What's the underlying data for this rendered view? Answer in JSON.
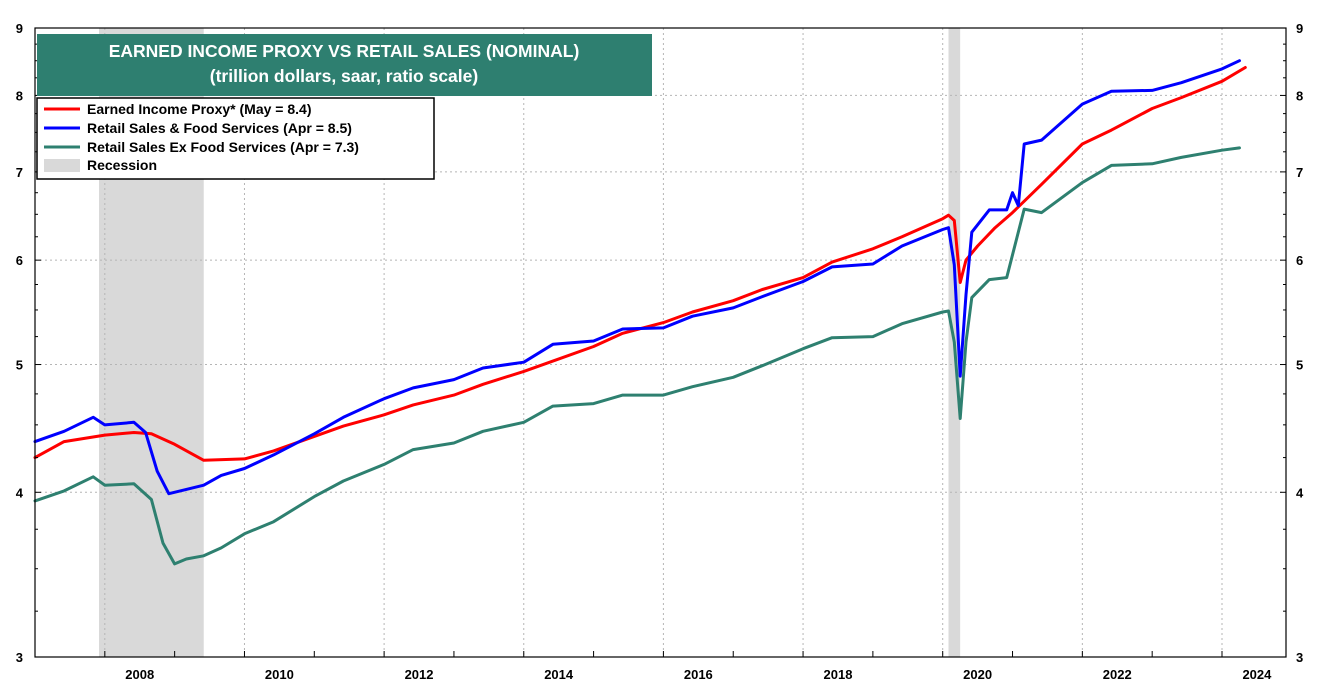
{
  "chart_data": {
    "type": "line",
    "title": "EARNED INCOME PROXY VS RETAIL SALES (NOMINAL)",
    "subtitle": "(trillion dollars, saar, ratio scale)",
    "ylabel": "",
    "xlabel": "",
    "y_scale": "log",
    "ylim": [
      3,
      9
    ],
    "xlim": [
      "2007-01",
      "2024-12"
    ],
    "yticks": [
      3,
      4,
      5,
      6,
      7,
      8,
      9
    ],
    "xticks": [
      "2008",
      "2010",
      "2012",
      "2014",
      "2016",
      "2018",
      "2020",
      "2022",
      "2024"
    ],
    "grid": true,
    "legend_position": "top-left",
    "right_axis_mirrors_left": true,
    "recessions": [
      {
        "start": "2007-12",
        "end": "2009-06"
      },
      {
        "start": "2020-02",
        "end": "2020-04"
      }
    ],
    "legend": [
      {
        "label": "Earned Income Proxy* (May = 8.4)",
        "color": "#ff0000"
      },
      {
        "label": "Retail Sales & Food Services (Apr = 8.5)",
        "color": "#0000ff"
      },
      {
        "label": "Retail Sales Ex Food Services (Apr = 7.3)",
        "color": "#2e8070"
      },
      {
        "label": "Recession",
        "color": "#d9d9d9"
      }
    ],
    "series": [
      {
        "name": "Earned Income Proxy* (May = 8.4)",
        "color": "#ff0000",
        "points": [
          [
            "2007-01",
            4.25
          ],
          [
            "2007-06",
            4.37
          ],
          [
            "2008-01",
            4.42
          ],
          [
            "2008-06",
            4.44
          ],
          [
            "2008-09",
            4.43
          ],
          [
            "2009-01",
            4.35
          ],
          [
            "2009-06",
            4.23
          ],
          [
            "2010-01",
            4.24
          ],
          [
            "2010-06",
            4.3
          ],
          [
            "2011-01",
            4.41
          ],
          [
            "2011-06",
            4.49
          ],
          [
            "2012-01",
            4.58
          ],
          [
            "2012-06",
            4.66
          ],
          [
            "2013-01",
            4.74
          ],
          [
            "2013-06",
            4.83
          ],
          [
            "2014-01",
            4.94
          ],
          [
            "2014-06",
            5.03
          ],
          [
            "2015-01",
            5.16
          ],
          [
            "2015-06",
            5.28
          ],
          [
            "2016-01",
            5.38
          ],
          [
            "2016-06",
            5.48
          ],
          [
            "2017-01",
            5.59
          ],
          [
            "2017-06",
            5.7
          ],
          [
            "2018-01",
            5.82
          ],
          [
            "2018-06",
            5.98
          ],
          [
            "2019-01",
            6.12
          ],
          [
            "2019-06",
            6.25
          ],
          [
            "2020-01",
            6.45
          ],
          [
            "2020-02",
            6.49
          ],
          [
            "2020-03",
            6.43
          ],
          [
            "2020-04",
            5.77
          ],
          [
            "2020-05",
            6.0
          ],
          [
            "2020-07",
            6.15
          ],
          [
            "2020-10",
            6.35
          ],
          [
            "2021-01",
            6.52
          ],
          [
            "2021-06",
            6.85
          ],
          [
            "2022-01",
            7.35
          ],
          [
            "2022-06",
            7.53
          ],
          [
            "2023-01",
            7.82
          ],
          [
            "2023-06",
            7.97
          ],
          [
            "2024-01",
            8.2
          ],
          [
            "2024-05",
            8.4
          ]
        ]
      },
      {
        "name": "Retail Sales & Food Services (Apr = 8.5)",
        "color": "#0000ff",
        "points": [
          [
            "2007-01",
            4.37
          ],
          [
            "2007-06",
            4.45
          ],
          [
            "2007-11",
            4.56
          ],
          [
            "2008-01",
            4.5
          ],
          [
            "2008-06",
            4.52
          ],
          [
            "2008-08",
            4.44
          ],
          [
            "2008-10",
            4.15
          ],
          [
            "2008-12",
            3.99
          ],
          [
            "2009-03",
            4.02
          ],
          [
            "2009-06",
            4.05
          ],
          [
            "2009-09",
            4.12
          ],
          [
            "2010-01",
            4.17
          ],
          [
            "2010-06",
            4.27
          ],
          [
            "2011-01",
            4.43
          ],
          [
            "2011-06",
            4.56
          ],
          [
            "2012-01",
            4.71
          ],
          [
            "2012-06",
            4.8
          ],
          [
            "2013-01",
            4.87
          ],
          [
            "2013-06",
            4.97
          ],
          [
            "2014-01",
            5.02
          ],
          [
            "2014-06",
            5.18
          ],
          [
            "2015-01",
            5.21
          ],
          [
            "2015-06",
            5.32
          ],
          [
            "2016-01",
            5.33
          ],
          [
            "2016-06",
            5.44
          ],
          [
            "2017-01",
            5.52
          ],
          [
            "2017-06",
            5.63
          ],
          [
            "2018-01",
            5.78
          ],
          [
            "2018-06",
            5.93
          ],
          [
            "2019-01",
            5.96
          ],
          [
            "2019-06",
            6.15
          ],
          [
            "2020-01",
            6.33
          ],
          [
            "2020-02",
            6.35
          ],
          [
            "2020-03",
            5.95
          ],
          [
            "2020-04",
            4.9
          ],
          [
            "2020-05",
            5.65
          ],
          [
            "2020-06",
            6.3
          ],
          [
            "2020-09",
            6.55
          ],
          [
            "2020-12",
            6.55
          ],
          [
            "2021-01",
            6.75
          ],
          [
            "2021-02",
            6.6
          ],
          [
            "2021-03",
            7.35
          ],
          [
            "2021-06",
            7.4
          ],
          [
            "2022-01",
            7.88
          ],
          [
            "2022-06",
            8.06
          ],
          [
            "2023-01",
            8.07
          ],
          [
            "2023-06",
            8.18
          ],
          [
            "2024-01",
            8.38
          ],
          [
            "2024-04",
            8.5
          ]
        ]
      },
      {
        "name": "Retail Sales Ex Food Services (Apr = 7.3)",
        "color": "#2e8070",
        "points": [
          [
            "2007-01",
            3.94
          ],
          [
            "2007-06",
            4.01
          ],
          [
            "2007-11",
            4.11
          ],
          [
            "2008-01",
            4.05
          ],
          [
            "2008-06",
            4.06
          ],
          [
            "2008-09",
            3.95
          ],
          [
            "2008-11",
            3.66
          ],
          [
            "2009-01",
            3.53
          ],
          [
            "2009-03",
            3.56
          ],
          [
            "2009-06",
            3.58
          ],
          [
            "2009-09",
            3.63
          ],
          [
            "2010-01",
            3.72
          ],
          [
            "2010-06",
            3.8
          ],
          [
            "2011-01",
            3.97
          ],
          [
            "2011-06",
            4.08
          ],
          [
            "2012-01",
            4.2
          ],
          [
            "2012-06",
            4.31
          ],
          [
            "2013-01",
            4.36
          ],
          [
            "2013-06",
            4.45
          ],
          [
            "2014-01",
            4.52
          ],
          [
            "2014-06",
            4.65
          ],
          [
            "2015-01",
            4.67
          ],
          [
            "2015-06",
            4.74
          ],
          [
            "2016-01",
            4.74
          ],
          [
            "2016-06",
            4.81
          ],
          [
            "2017-01",
            4.89
          ],
          [
            "2017-06",
            4.99
          ],
          [
            "2018-01",
            5.14
          ],
          [
            "2018-06",
            5.24
          ],
          [
            "2019-01",
            5.25
          ],
          [
            "2019-06",
            5.37
          ],
          [
            "2020-01",
            5.48
          ],
          [
            "2020-02",
            5.49
          ],
          [
            "2020-03",
            5.2
          ],
          [
            "2020-04",
            4.55
          ],
          [
            "2020-05",
            5.2
          ],
          [
            "2020-06",
            5.62
          ],
          [
            "2020-09",
            5.8
          ],
          [
            "2020-12",
            5.82
          ],
          [
            "2021-03",
            6.56
          ],
          [
            "2021-06",
            6.52
          ],
          [
            "2022-01",
            6.87
          ],
          [
            "2022-06",
            7.08
          ],
          [
            "2023-01",
            7.1
          ],
          [
            "2023-06",
            7.18
          ],
          [
            "2024-01",
            7.27
          ],
          [
            "2024-04",
            7.3
          ]
        ]
      }
    ]
  }
}
